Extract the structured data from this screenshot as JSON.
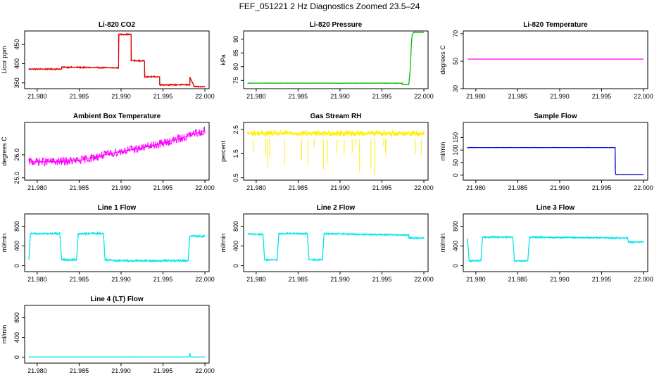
{
  "title": "FEF_051221  2 Hz Diagnostics Zoomed 23.5–24",
  "chart_data": [
    {
      "type": "line",
      "title": "Li-820 CO2",
      "ylabel": "Licor ppm",
      "color": "#e00000",
      "xlim": [
        21.9785,
        22.0005
      ],
      "ylim": [
        335,
        485
      ],
      "xticks": [
        "21.980",
        "21.985",
        "21.990",
        "21.995",
        "22.000"
      ],
      "yticks": [
        "350",
        "400",
        "450"
      ],
      "noise": 2,
      "x": [
        21.979,
        21.9829,
        21.9829,
        21.9897,
        21.9897,
        21.9912,
        21.9912,
        21.9928,
        21.9928,
        21.9946,
        21.9946,
        21.9982,
        21.9982,
        21.9987,
        21.9987,
        22.0
      ],
      "y": [
        386,
        386,
        391,
        389,
        476,
        476,
        408,
        407,
        366,
        366,
        345,
        345,
        365,
        342,
        340,
        340
      ]
    },
    {
      "type": "line",
      "title": "Li-820 Pressure",
      "ylabel": "kPa",
      "color": "#00bb00",
      "xlim": [
        21.9785,
        22.0005
      ],
      "ylim": [
        72,
        93
      ],
      "xticks": [
        "21.980",
        "21.985",
        "21.990",
        "21.995",
        "22.000"
      ],
      "yticks": [
        "75",
        "80",
        "85",
        "90"
      ],
      "noise": 0.1,
      "x": [
        21.979,
        21.9974,
        21.9974,
        21.9982,
        21.9984,
        21.9985,
        21.9986,
        21.9988,
        22.0
      ],
      "y": [
        74,
        74,
        73.5,
        73.5,
        80,
        88,
        91.5,
        92.5,
        92.5
      ]
    },
    {
      "type": "line",
      "title": "Li-820 Temperature",
      "ylabel": "degrees C",
      "color": "#ff00ff",
      "xlim": [
        21.9785,
        22.0005
      ],
      "ylim": [
        30,
        72
      ],
      "xticks": [
        "21.980",
        "21.985",
        "21.990",
        "21.995",
        "22.000"
      ],
      "yticks": [
        "30",
        "50",
        "70"
      ],
      "noise": 0,
      "x": [
        21.979,
        22.0
      ],
      "y": [
        51.5,
        51.5
      ]
    },
    {
      "type": "line",
      "title": "Ambient Box Temperature",
      "ylabel": "degrees C",
      "color": "#ff00ff",
      "xlim": [
        21.9785,
        22.0005
      ],
      "ylim": [
        24.9,
        27.4
      ],
      "xticks": [
        "21.980",
        "21.985",
        "21.990",
        "21.995",
        "22.000"
      ],
      "yticks": [
        "25.0",
        "26.0"
      ],
      "noise": 0.18,
      "x": [
        21.979,
        21.9825,
        21.985,
        21.9875,
        21.99,
        21.9925,
        21.995,
        21.9975,
        22.0
      ],
      "y": [
        25.7,
        25.7,
        25.75,
        25.95,
        26.15,
        26.3,
        26.5,
        26.75,
        27.05
      ]
    },
    {
      "type": "line",
      "title": "Gas Stream RH",
      "ylabel": "percent",
      "color": "#ffee00",
      "xlim": [
        21.9785,
        22.0005
      ],
      "ylim": [
        0.4,
        2.8
      ],
      "xticks": [
        "21.980",
        "21.985",
        "21.990",
        "21.995",
        "22.000"
      ],
      "yticks": [
        "0.5",
        "1.5",
        "2.5"
      ],
      "noise": 0.12,
      "x": [
        21.979,
        22.0
      ],
      "y": [
        2.35,
        2.35
      ]
    },
    {
      "type": "line",
      "title": "Sample Flow",
      "ylabel": "ml/min",
      "color": "#0000cc",
      "xlim": [
        21.9785,
        22.0005
      ],
      "ylim": [
        -20,
        210
      ],
      "xticks": [
        "21.980",
        "21.985",
        "21.990",
        "21.995",
        "22.000"
      ],
      "yticks": [
        "0",
        "50",
        "100",
        "150"
      ],
      "noise": 1,
      "x": [
        21.979,
        21.9966,
        21.9966,
        21.9967,
        22.0
      ],
      "y": [
        110,
        110,
        30,
        2,
        2
      ]
    },
    {
      "type": "line",
      "title": "Line 1 Flow",
      "ylabel": "ml/min",
      "color": "#00e5ee",
      "xlim": [
        21.9785,
        22.0005
      ],
      "ylim": [
        -120,
        1050
      ],
      "xticks": [
        "21.980",
        "21.985",
        "21.990",
        "21.995",
        "22.000"
      ],
      "yticks": [
        "0",
        "400",
        "800"
      ],
      "noise": 25,
      "x": [
        21.979,
        21.9792,
        21.9827,
        21.9829,
        21.9847,
        21.9849,
        21.9879,
        21.9881,
        21.9898,
        21.998,
        21.9982,
        22.0
      ],
      "y": [
        120,
        650,
        650,
        120,
        120,
        650,
        650,
        120,
        100,
        100,
        600,
        600
      ]
    },
    {
      "type": "line",
      "title": "Line 2 Flow",
      "ylabel": "ml/min",
      "color": "#00e5ee",
      "xlim": [
        21.9785,
        22.0005
      ],
      "ylim": [
        -120,
        1050
      ],
      "xticks": [
        "21.980",
        "21.985",
        "21.990",
        "21.995",
        "22.000"
      ],
      "yticks": [
        "0",
        "400",
        "800"
      ],
      "noise": 20,
      "x": [
        21.979,
        21.9808,
        21.981,
        21.9825,
        21.9827,
        21.9861,
        21.9863,
        21.9879,
        21.9881,
        21.9982,
        21.9982,
        22.0
      ],
      "y": [
        640,
        640,
        120,
        120,
        650,
        650,
        120,
        120,
        650,
        620,
        560,
        560
      ]
    },
    {
      "type": "line",
      "title": "Line 3 Flow",
      "ylabel": "ml/min",
      "color": "#00e5ee",
      "xlim": [
        21.9785,
        22.0005
      ],
      "ylim": [
        -120,
        1050
      ],
      "xticks": [
        "21.980",
        "21.985",
        "21.990",
        "21.995",
        "22.000"
      ],
      "yticks": [
        "0",
        "400",
        "800"
      ],
      "noise": 20,
      "x": [
        21.979,
        21.9792,
        21.9794,
        21.9806,
        21.9808,
        21.9844,
        21.9846,
        21.9862,
        21.9864,
        21.9981,
        21.9982,
        22.0
      ],
      "y": [
        560,
        100,
        100,
        100,
        580,
        580,
        100,
        100,
        580,
        560,
        480,
        480
      ]
    },
    {
      "type": "line",
      "title": "Line 4 (LT) Flow",
      "ylabel": "ml/min",
      "color": "#00e5ee",
      "xlim": [
        21.9785,
        22.0005
      ],
      "ylim": [
        -120,
        1050
      ],
      "xticks": [
        "21.980",
        "21.985",
        "21.990",
        "21.995",
        "22.000"
      ],
      "yticks": [
        "0",
        "400",
        "800"
      ],
      "noise": 3,
      "x": [
        21.979,
        21.9981,
        21.9982,
        21.9983,
        21.9985,
        22.0
      ],
      "y": [
        5,
        5,
        80,
        10,
        5,
        5
      ]
    }
  ]
}
